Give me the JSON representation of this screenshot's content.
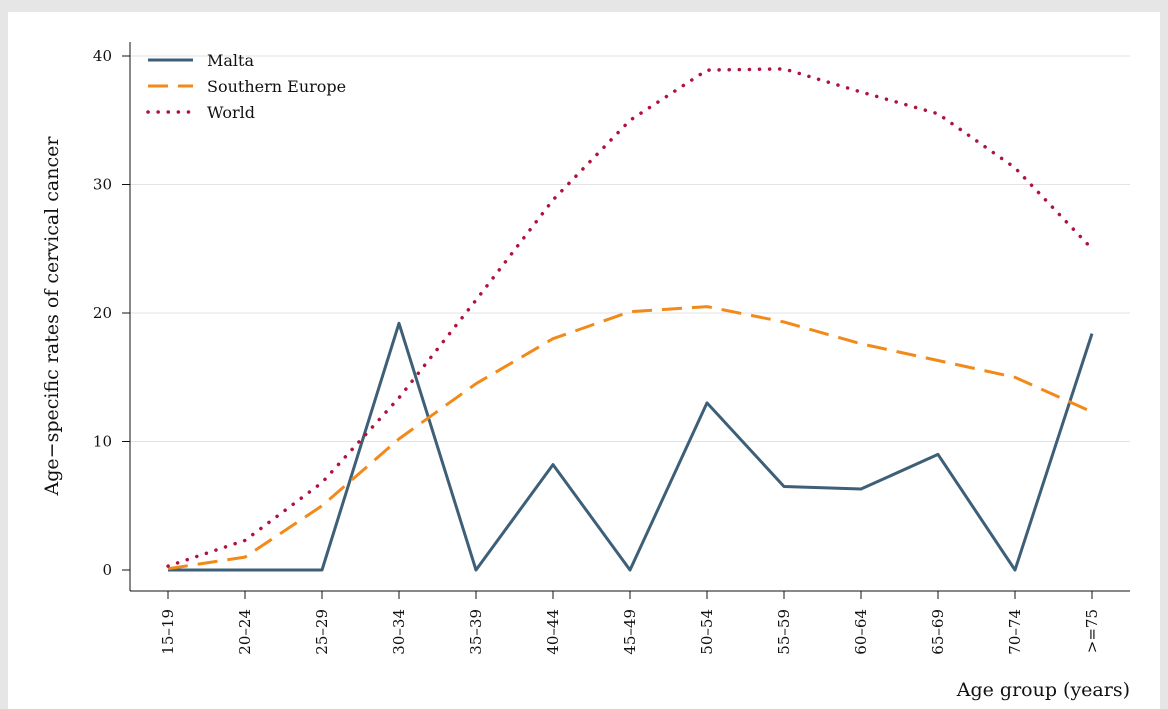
{
  "chart_data": {
    "type": "line",
    "categories": [
      "15–19",
      "20–24",
      "25–29",
      "30–34",
      "35–39",
      "40–44",
      "45–49",
      "50–54",
      "55–59",
      "60–64",
      "65–69",
      "70–74",
      ">=75"
    ],
    "series": [
      {
        "name": "Malta",
        "values": [
          0,
          0,
          0,
          19.2,
          0,
          8.2,
          0,
          13.0,
          6.5,
          6.3,
          9.0,
          0,
          18.4
        ],
        "color": "#3e5f78",
        "style": "solid"
      },
      {
        "name": "Southern Europe",
        "values": [
          0.1,
          1.0,
          5.0,
          10.2,
          14.5,
          18.0,
          20.1,
          20.5,
          19.3,
          17.6,
          16.3,
          15.0,
          12.3
        ],
        "color": "#f28a1a",
        "style": "dashed"
      },
      {
        "name": "World",
        "values": [
          0.3,
          2.3,
          6.8,
          13.4,
          21.0,
          28.8,
          35.0,
          38.9,
          39.0,
          37.2,
          35.5,
          31.3,
          25.0
        ],
        "color": "#b0123e",
        "style": "dotted"
      }
    ],
    "xlabel": "Age group (years)",
    "ylabel": "Age−specific rates of cervical cancer",
    "ylim": [
      0,
      40
    ],
    "yticks": [
      0,
      10,
      20,
      30,
      40
    ],
    "grid": "horizontal",
    "legend_position": "top-left"
  }
}
